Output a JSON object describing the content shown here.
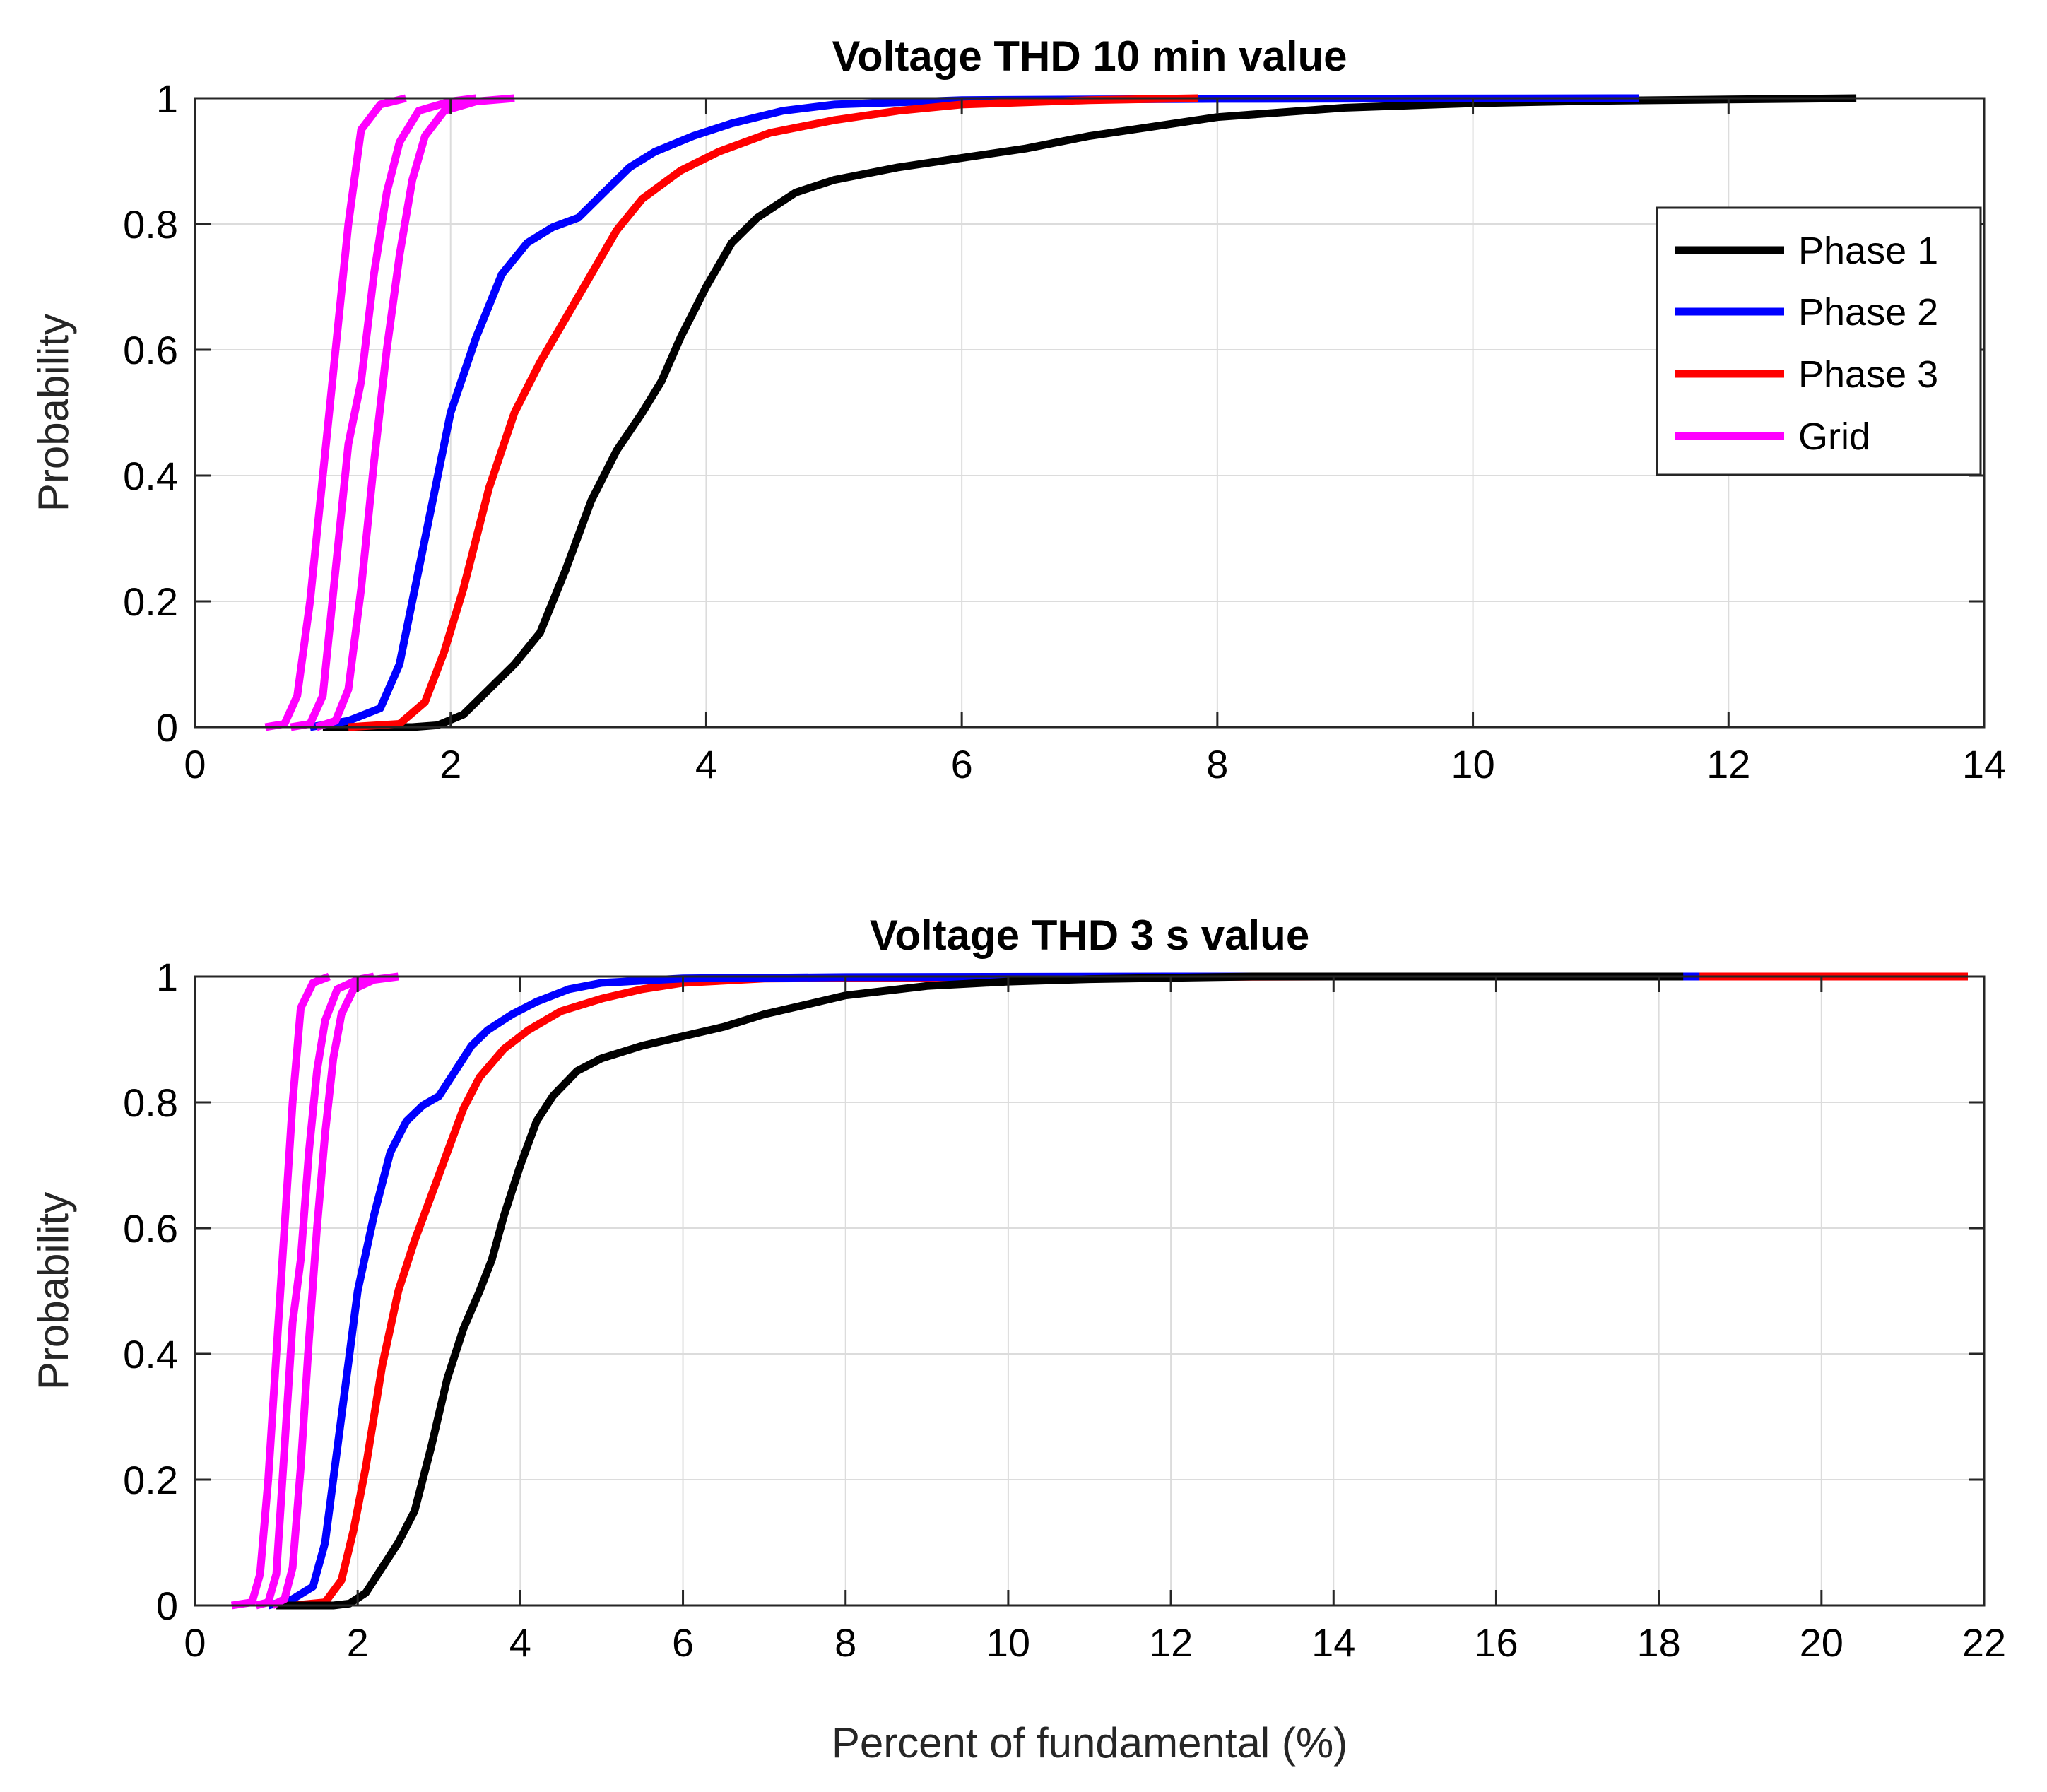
{
  "chart_data": [
    {
      "type": "line",
      "title": "Voltage THD 10 min value",
      "xlabel": "",
      "ylabel": "Probability",
      "xlim": [
        0,
        14
      ],
      "ylim": [
        0,
        1
      ],
      "xticks": [
        0,
        2,
        4,
        6,
        8,
        10,
        12,
        14
      ],
      "yticks": [
        0,
        0.2,
        0.4,
        0.6,
        0.8,
        1
      ],
      "xtick_labels": [
        "0",
        "2",
        "4",
        "6",
        "8",
        "10",
        "12",
        "14"
      ],
      "ytick_labels": [
        "0",
        "0.2",
        "0.4",
        "0.6",
        "0.8",
        "1"
      ],
      "grid": true,
      "legend": {
        "placement": "top-right",
        "entries": [
          "Phase 1",
          "Phase 2",
          "Phase 3",
          "Grid"
        ]
      },
      "series": [
        {
          "name": "Phase 1",
          "color": "#000000",
          "points": [
            [
              1.0,
              0
            ],
            [
              1.7,
              0
            ],
            [
              1.9,
              0.003
            ],
            [
              2.1,
              0.02
            ],
            [
              2.3,
              0.06
            ],
            [
              2.5,
              0.1
            ],
            [
              2.7,
              0.15
            ],
            [
              2.9,
              0.25
            ],
            [
              3.1,
              0.36
            ],
            [
              3.3,
              0.44
            ],
            [
              3.5,
              0.5
            ],
            [
              3.65,
              0.55
            ],
            [
              3.8,
              0.62
            ],
            [
              4.0,
              0.7
            ],
            [
              4.2,
              0.77
            ],
            [
              4.4,
              0.81
            ],
            [
              4.7,
              0.85
            ],
            [
              5.0,
              0.87
            ],
            [
              5.5,
              0.89
            ],
            [
              6.0,
              0.905
            ],
            [
              6.5,
              0.92
            ],
            [
              7.0,
              0.94
            ],
            [
              7.5,
              0.955
            ],
            [
              8.0,
              0.97
            ],
            [
              9.0,
              0.985
            ],
            [
              10.0,
              0.992
            ],
            [
              11.0,
              0.996
            ],
            [
              12.0,
              0.998
            ],
            [
              13.0,
              1.0
            ]
          ]
        },
        {
          "name": "Phase 2",
          "color": "#0000ff",
          "points": [
            [
              0.9,
              0
            ],
            [
              1.2,
              0.01
            ],
            [
              1.45,
              0.03
            ],
            [
              1.6,
              0.1
            ],
            [
              1.75,
              0.25
            ],
            [
              1.9,
              0.4
            ],
            [
              2.0,
              0.5
            ],
            [
              2.2,
              0.62
            ],
            [
              2.4,
              0.72
            ],
            [
              2.6,
              0.77
            ],
            [
              2.8,
              0.795
            ],
            [
              3.0,
              0.81
            ],
            [
              3.2,
              0.85
            ],
            [
              3.4,
              0.89
            ],
            [
              3.6,
              0.915
            ],
            [
              3.9,
              0.94
            ],
            [
              4.2,
              0.96
            ],
            [
              4.6,
              0.98
            ],
            [
              5.0,
              0.99
            ],
            [
              6.0,
              0.997
            ],
            [
              8.0,
              0.999
            ],
            [
              11.3,
              1.0
            ]
          ]
        },
        {
          "name": "Phase 3",
          "color": "#ff0000",
          "points": [
            [
              1.2,
              0
            ],
            [
              1.6,
              0.005
            ],
            [
              1.8,
              0.04
            ],
            [
              1.95,
              0.12
            ],
            [
              2.1,
              0.22
            ],
            [
              2.3,
              0.38
            ],
            [
              2.5,
              0.5
            ],
            [
              2.7,
              0.58
            ],
            [
              2.9,
              0.65
            ],
            [
              3.1,
              0.72
            ],
            [
              3.3,
              0.79
            ],
            [
              3.5,
              0.84
            ],
            [
              3.8,
              0.885
            ],
            [
              4.1,
              0.915
            ],
            [
              4.5,
              0.945
            ],
            [
              5.0,
              0.965
            ],
            [
              5.5,
              0.98
            ],
            [
              6.0,
              0.99
            ],
            [
              7.0,
              0.997
            ],
            [
              7.85,
              1.0
            ]
          ]
        },
        {
          "name": "Grid",
          "color": "#ff00ff",
          "points": [
            [
              0.55,
              0
            ],
            [
              0.7,
              0.005
            ],
            [
              0.8,
              0.05
            ],
            [
              0.9,
              0.2
            ],
            [
              1.0,
              0.4
            ],
            [
              1.1,
              0.6
            ],
            [
              1.2,
              0.8
            ],
            [
              1.3,
              0.95
            ],
            [
              1.45,
              0.99
            ],
            [
              1.65,
              1.0
            ]
          ]
        },
        {
          "name": "Grid",
          "color": "#ff00ff",
          "points": [
            [
              0.75,
              0
            ],
            [
              0.9,
              0.005
            ],
            [
              1.0,
              0.05
            ],
            [
              1.1,
              0.25
            ],
            [
              1.2,
              0.45
            ],
            [
              1.3,
              0.55
            ],
            [
              1.4,
              0.72
            ],
            [
              1.5,
              0.85
            ],
            [
              1.6,
              0.93
            ],
            [
              1.75,
              0.98
            ],
            [
              2.0,
              0.995
            ],
            [
              2.2,
              1.0
            ]
          ]
        },
        {
          "name": "Grid",
          "color": "#ff00ff",
          "points": [
            [
              0.95,
              0
            ],
            [
              1.1,
              0.01
            ],
            [
              1.2,
              0.06
            ],
            [
              1.3,
              0.22
            ],
            [
              1.4,
              0.42
            ],
            [
              1.5,
              0.6
            ],
            [
              1.6,
              0.75
            ],
            [
              1.7,
              0.87
            ],
            [
              1.8,
              0.94
            ],
            [
              1.95,
              0.98
            ],
            [
              2.2,
              0.995
            ],
            [
              2.5,
              1.0
            ]
          ]
        }
      ]
    },
    {
      "type": "line",
      "title": "Voltage THD 3 s value",
      "xlabel": "Percent of fundamental (%)",
      "ylabel": "Probability",
      "xlim": [
        0,
        22
      ],
      "ylim": [
        0,
        1
      ],
      "xticks": [
        0,
        2,
        4,
        6,
        8,
        10,
        12,
        14,
        16,
        18,
        20,
        22
      ],
      "yticks": [
        0,
        0.2,
        0.4,
        0.6,
        0.8,
        1
      ],
      "xtick_labels": [
        "0",
        "2",
        "4",
        "6",
        "8",
        "10",
        "12",
        "14",
        "16",
        "18",
        "20",
        "22"
      ],
      "ytick_labels": [
        "0",
        "0.2",
        "0.4",
        "0.6",
        "0.8",
        "1"
      ],
      "grid": true,
      "series": [
        {
          "name": "Phase 3",
          "color": "#ff0000",
          "points": [
            [
              1.2,
              0
            ],
            [
              1.6,
              0.005
            ],
            [
              1.8,
              0.04
            ],
            [
              1.95,
              0.12
            ],
            [
              2.1,
              0.22
            ],
            [
              2.3,
              0.38
            ],
            [
              2.5,
              0.5
            ],
            [
              2.7,
              0.58
            ],
            [
              2.9,
              0.65
            ],
            [
              3.1,
              0.72
            ],
            [
              3.3,
              0.79
            ],
            [
              3.5,
              0.84
            ],
            [
              3.8,
              0.885
            ],
            [
              4.1,
              0.915
            ],
            [
              4.5,
              0.945
            ],
            [
              5.0,
              0.965
            ],
            [
              5.5,
              0.98
            ],
            [
              6.0,
              0.99
            ],
            [
              7.0,
              0.997
            ],
            [
              10.0,
              0.999
            ],
            [
              14.0,
              1.0
            ],
            [
              21.8,
              1.0
            ]
          ]
        },
        {
          "name": "Phase 2",
          "color": "#0000ff",
          "points": [
            [
              0.9,
              0
            ],
            [
              1.2,
              0.01
            ],
            [
              1.45,
              0.03
            ],
            [
              1.6,
              0.1
            ],
            [
              1.75,
              0.25
            ],
            [
              1.9,
              0.4
            ],
            [
              2.0,
              0.5
            ],
            [
              2.2,
              0.62
            ],
            [
              2.4,
              0.72
            ],
            [
              2.6,
              0.77
            ],
            [
              2.8,
              0.795
            ],
            [
              3.0,
              0.81
            ],
            [
              3.2,
              0.85
            ],
            [
              3.4,
              0.89
            ],
            [
              3.6,
              0.915
            ],
            [
              3.9,
              0.94
            ],
            [
              4.2,
              0.96
            ],
            [
              4.6,
              0.98
            ],
            [
              5.0,
              0.99
            ],
            [
              6.0,
              0.997
            ],
            [
              8.0,
              0.999
            ],
            [
              12.0,
              1.0
            ],
            [
              18.5,
              1.0
            ]
          ]
        },
        {
          "name": "Phase 1",
          "color": "#000000",
          "points": [
            [
              1.0,
              0
            ],
            [
              1.7,
              0
            ],
            [
              1.9,
              0.003
            ],
            [
              2.1,
              0.02
            ],
            [
              2.3,
              0.06
            ],
            [
              2.5,
              0.1
            ],
            [
              2.7,
              0.15
            ],
            [
              2.9,
              0.25
            ],
            [
              3.1,
              0.36
            ],
            [
              3.3,
              0.44
            ],
            [
              3.5,
              0.5
            ],
            [
              3.65,
              0.55
            ],
            [
              3.8,
              0.62
            ],
            [
              4.0,
              0.7
            ],
            [
              4.2,
              0.77
            ],
            [
              4.4,
              0.81
            ],
            [
              4.7,
              0.85
            ],
            [
              5.0,
              0.87
            ],
            [
              5.5,
              0.89
            ],
            [
              6.0,
              0.905
            ],
            [
              6.5,
              0.92
            ],
            [
              7.0,
              0.94
            ],
            [
              7.5,
              0.955
            ],
            [
              8.0,
              0.97
            ],
            [
              9.0,
              0.985
            ],
            [
              10.0,
              0.992
            ],
            [
              11.0,
              0.996
            ],
            [
              12.0,
              0.998
            ],
            [
              13.0,
              1.0
            ],
            [
              18.3,
              1.0
            ]
          ]
        },
        {
          "name": "Grid",
          "color": "#ff00ff",
          "points": [
            [
              0.45,
              0
            ],
            [
              0.7,
              0.005
            ],
            [
              0.8,
              0.05
            ],
            [
              0.9,
              0.2
            ],
            [
              1.0,
              0.4
            ],
            [
              1.1,
              0.6
            ],
            [
              1.2,
              0.8
            ],
            [
              1.3,
              0.95
            ],
            [
              1.45,
              0.99
            ],
            [
              1.65,
              1.0
            ]
          ]
        },
        {
          "name": "Grid",
          "color": "#ff00ff",
          "points": [
            [
              0.75,
              0
            ],
            [
              0.9,
              0.005
            ],
            [
              1.0,
              0.05
            ],
            [
              1.1,
              0.25
            ],
            [
              1.2,
              0.45
            ],
            [
              1.3,
              0.55
            ],
            [
              1.4,
              0.72
            ],
            [
              1.5,
              0.85
            ],
            [
              1.6,
              0.93
            ],
            [
              1.75,
              0.98
            ],
            [
              2.0,
              0.995
            ],
            [
              2.2,
              1.0
            ]
          ]
        },
        {
          "name": "Grid",
          "color": "#ff00ff",
          "points": [
            [
              0.95,
              0
            ],
            [
              1.1,
              0.01
            ],
            [
              1.2,
              0.06
            ],
            [
              1.3,
              0.22
            ],
            [
              1.4,
              0.42
            ],
            [
              1.5,
              0.6
            ],
            [
              1.6,
              0.75
            ],
            [
              1.7,
              0.87
            ],
            [
              1.8,
              0.94
            ],
            [
              1.95,
              0.98
            ],
            [
              2.2,
              0.995
            ],
            [
              2.5,
              1.0
            ]
          ]
        }
      ]
    }
  ]
}
